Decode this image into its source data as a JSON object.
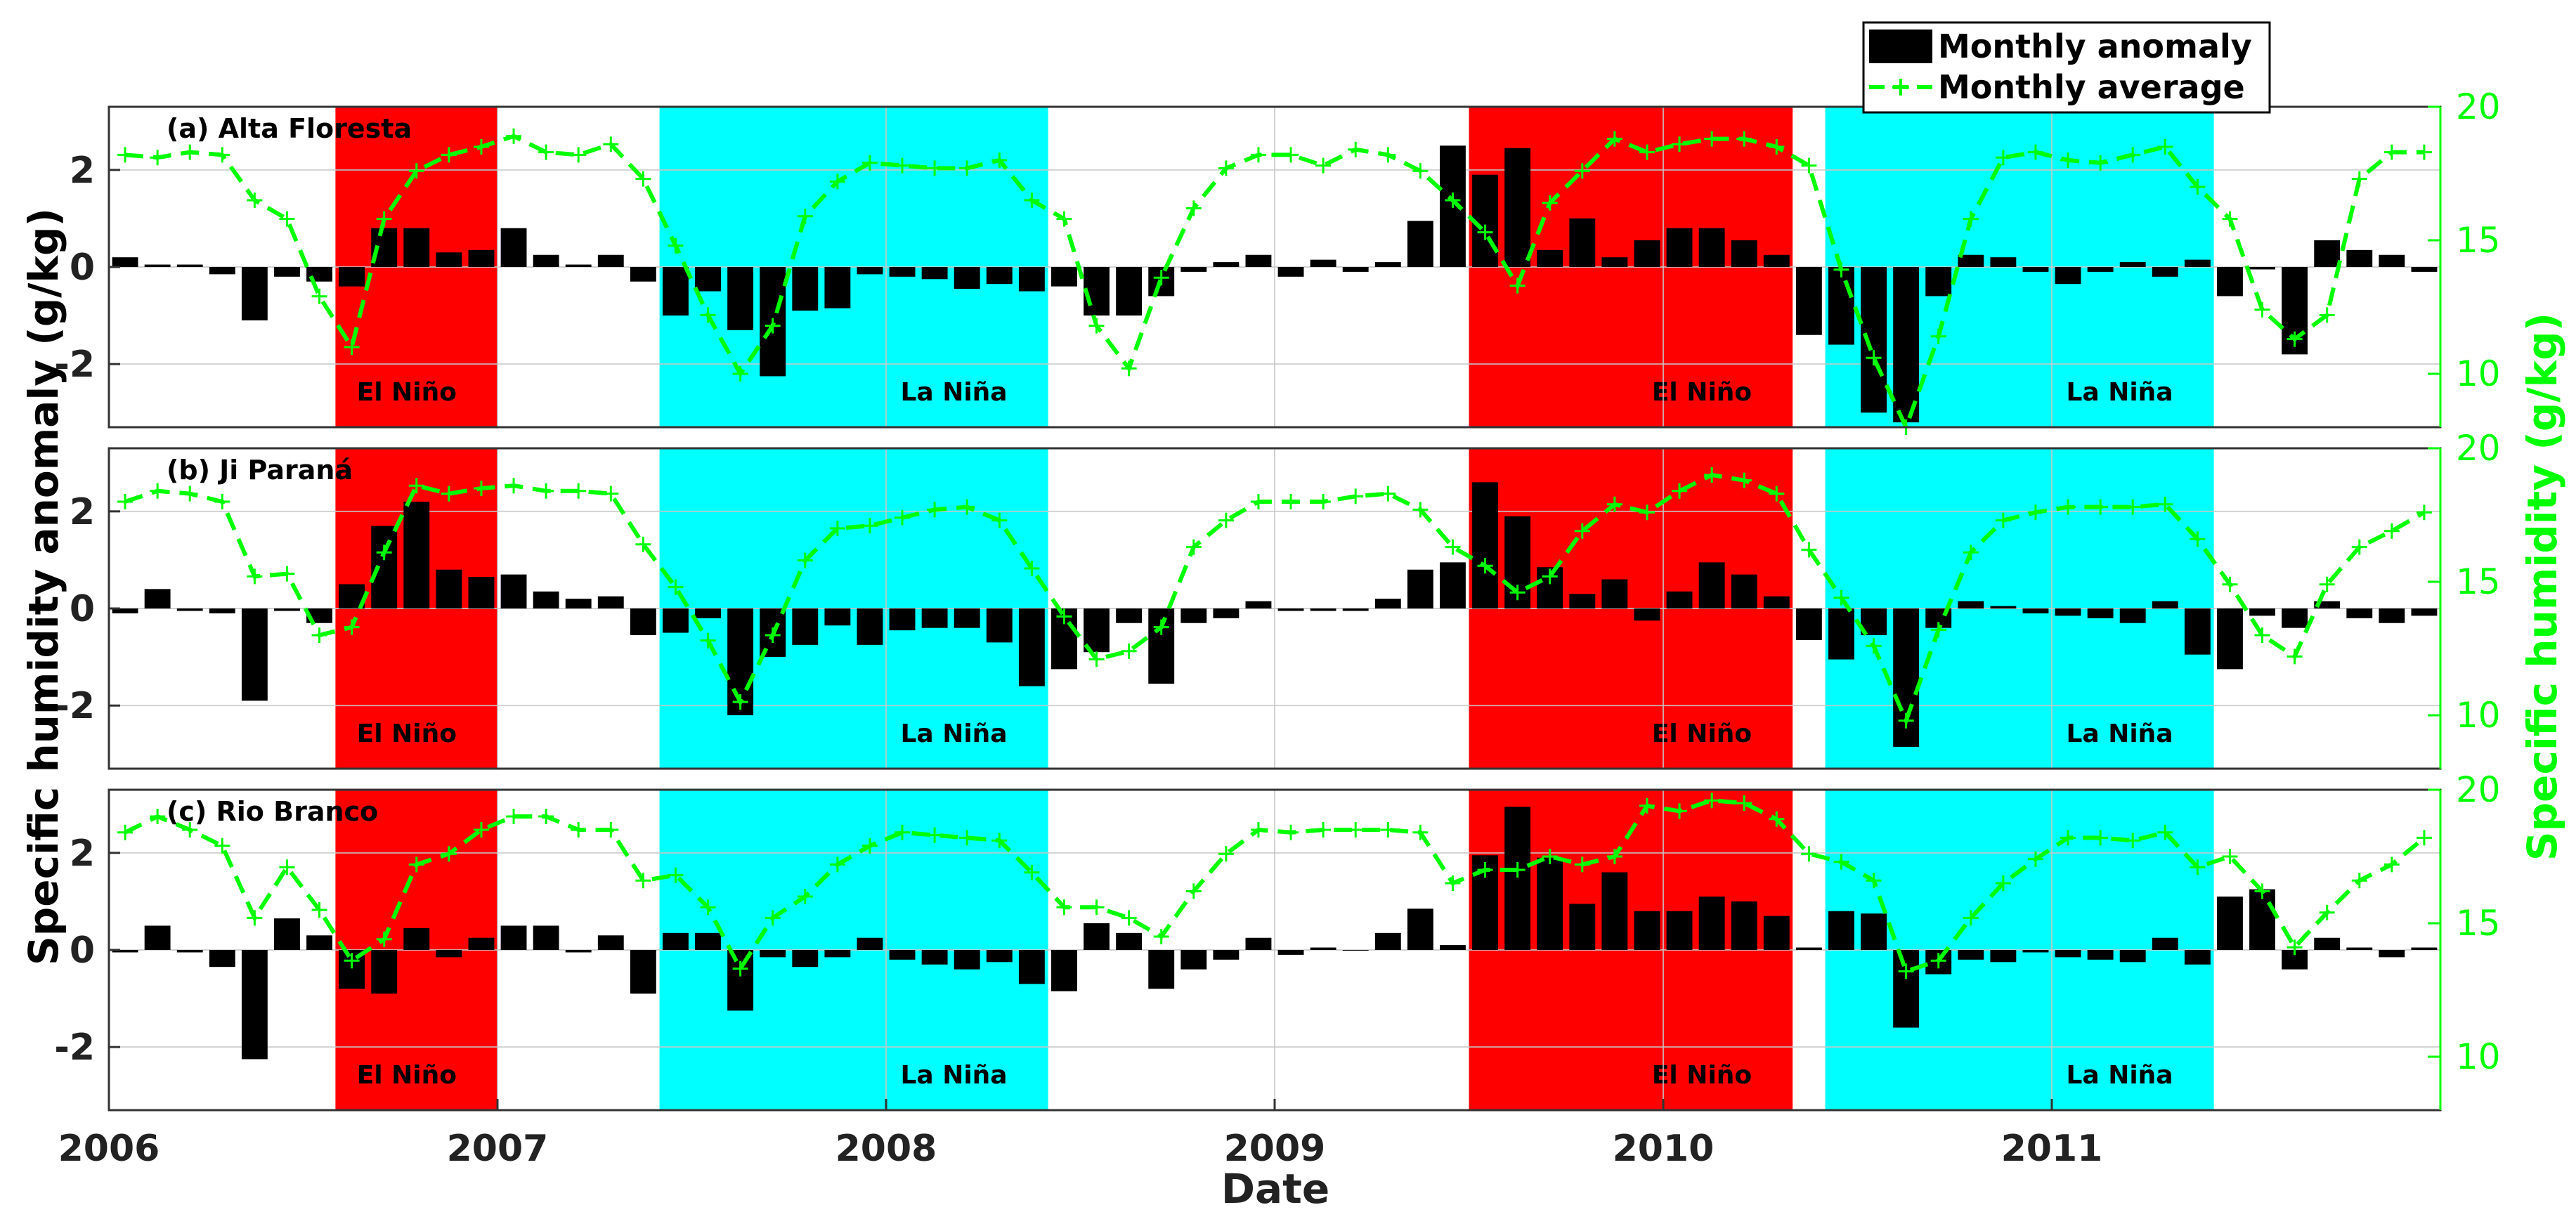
{
  "chart_data": {
    "type": "bar+line",
    "x_axis": {
      "label": "Date",
      "ticks": [
        "2006",
        "2007",
        "2008",
        "2009",
        "2010",
        "2011"
      ],
      "range_years": [
        2006.0,
        2012.0
      ]
    },
    "y_left": {
      "label": "Specific humidity anomaly (g/kg)",
      "ticks": [
        "-2",
        "0",
        "2"
      ],
      "range": [
        -3.3,
        3.3
      ]
    },
    "y_right": {
      "label": "Specific humidity (g/kg)",
      "ticks": [
        "10",
        "15",
        "20"
      ],
      "range": [
        8,
        20
      ]
    },
    "legend": {
      "position": "top-right",
      "entries": [
        {
          "label": "Monthly anomaly",
          "style": "bar"
        },
        {
          "label": "Monthly average",
          "style": "dashed line with + markers"
        }
      ]
    },
    "colors": {
      "bar": "#000000",
      "line": "#00ff00",
      "el_nino": "#ff0000",
      "la_nina": "#00ffff",
      "right_axis": "#00ff00"
    },
    "enso_periods": [
      {
        "label": "El Niño",
        "start": 2006.583,
        "end": 2007.0
      },
      {
        "label": "La Niña",
        "start": 2007.417,
        "end": 2008.417
      },
      {
        "label": "El Niño",
        "start": 2009.5,
        "end": 2010.333
      },
      {
        "label": "La Niña",
        "start": 2010.417,
        "end": 2011.417
      }
    ],
    "panels": [
      {
        "title": "(a) Alta Floresta",
        "anomaly": [
          0.2,
          0.05,
          0.05,
          -0.15,
          -1.1,
          -0.2,
          -0.3,
          -0.4,
          0.8,
          0.8,
          0.3,
          0.35,
          0.8,
          0.25,
          0.05,
          0.25,
          -0.3,
          -1.0,
          -0.5,
          -1.3,
          -2.25,
          -0.9,
          -0.85,
          -0.15,
          -0.2,
          -0.25,
          -0.45,
          -0.35,
          -0.5,
          -0.4,
          -1.0,
          -1.0,
          -0.6,
          -0.1,
          0.1,
          0.25,
          -0.2,
          0.15,
          -0.1,
          0.1,
          0.95,
          2.5,
          1.9,
          2.45,
          0.35,
          1.0,
          0.2,
          0.55,
          0.8,
          0.8,
          0.55,
          0.25,
          -1.4,
          -1.6,
          -3.0,
          -3.2,
          -0.6,
          0.25,
          0.2,
          -0.1,
          -0.35,
          -0.1,
          0.1,
          -0.2,
          0.15,
          -0.6,
          -0.05,
          -1.8,
          0.55,
          0.35,
          0.25,
          -0.1
        ],
        "average": [
          18.2,
          18.1,
          18.3,
          18.2,
          16.5,
          15.8,
          12.9,
          11.0,
          15.8,
          17.6,
          18.2,
          18.5,
          18.9,
          18.3,
          18.2,
          18.6,
          17.3,
          14.8,
          12.2,
          10.0,
          11.8,
          15.9,
          17.2,
          17.9,
          17.8,
          17.7,
          17.7,
          18.0,
          16.5,
          15.8,
          11.8,
          10.2,
          13.6,
          16.2,
          17.7,
          18.2,
          18.2,
          17.8,
          18.4,
          18.2,
          17.6,
          16.5,
          15.3,
          13.3,
          16.4,
          17.6,
          18.8,
          18.3,
          18.6,
          18.8,
          18.8,
          18.5,
          17.8,
          13.9,
          10.6,
          8.0,
          11.4,
          15.8,
          18.1,
          18.3,
          18.0,
          17.9,
          18.2,
          18.5,
          17.0,
          15.8,
          12.4,
          11.3,
          12.2,
          17.3,
          18.3,
          18.3
        ]
      },
      {
        "title": "(b) Ji Paraná",
        "anomaly": [
          -0.1,
          0.4,
          -0.05,
          -0.1,
          -1.9,
          -0.05,
          -0.3,
          0.5,
          1.7,
          2.2,
          0.8,
          0.65,
          0.7,
          0.35,
          0.2,
          0.25,
          -0.55,
          -0.5,
          -0.2,
          -2.2,
          -1.0,
          -0.75,
          -0.35,
          -0.75,
          -0.45,
          -0.4,
          -0.4,
          -0.7,
          -1.6,
          -1.25,
          -0.9,
          -0.3,
          -1.55,
          -0.3,
          -0.2,
          0.15,
          -0.05,
          -0.05,
          -0.05,
          0.2,
          0.8,
          0.95,
          2.6,
          1.9,
          0.85,
          0.3,
          0.6,
          -0.25,
          0.35,
          0.95,
          0.7,
          0.25,
          -0.65,
          -1.05,
          -0.55,
          -2.85,
          -0.4,
          0.15,
          0.05,
          -0.1,
          -0.15,
          -0.2,
          -0.3,
          0.15,
          -0.95,
          -1.25,
          -0.15,
          -0.4,
          0.15,
          -0.2,
          -0.3,
          -0.15
        ],
        "average": [
          18.0,
          18.4,
          18.3,
          18.0,
          15.2,
          15.3,
          13.0,
          13.3,
          16.1,
          18.6,
          18.3,
          18.5,
          18.6,
          18.4,
          18.4,
          18.3,
          16.4,
          14.8,
          12.8,
          10.5,
          13.0,
          15.8,
          17.0,
          17.1,
          17.4,
          17.7,
          17.8,
          17.3,
          15.5,
          13.7,
          12.1,
          12.4,
          13.3,
          16.3,
          17.3,
          18.0,
          18.0,
          18.0,
          18.2,
          18.3,
          17.7,
          16.3,
          15.6,
          14.6,
          15.2,
          16.9,
          17.9,
          17.6,
          18.4,
          19.0,
          18.8,
          18.3,
          16.2,
          14.4,
          12.6,
          9.8,
          13.2,
          16.1,
          17.3,
          17.6,
          17.8,
          17.8,
          17.8,
          17.9,
          16.6,
          14.9,
          13.0,
          12.2,
          14.9,
          16.3,
          16.9,
          17.6
        ]
      },
      {
        "title": "(c) Rio Branco",
        "anomaly": [
          -0.05,
          0.5,
          -0.05,
          -0.35,
          -2.25,
          0.65,
          0.3,
          -0.8,
          -0.9,
          0.45,
          -0.15,
          0.25,
          0.5,
          0.5,
          -0.05,
          0.3,
          -0.9,
          0.35,
          0.35,
          -1.25,
          -0.15,
          -0.35,
          -0.15,
          0.25,
          -0.2,
          -0.3,
          -0.4,
          -0.25,
          -0.7,
          -0.85,
          0.55,
          0.35,
          -0.8,
          -0.4,
          -0.2,
          0.25,
          -0.1,
          0.05,
          0.0,
          0.35,
          0.85,
          0.1,
          1.95,
          2.95,
          1.9,
          0.95,
          1.6,
          0.8,
          0.8,
          1.1,
          1.0,
          0.7,
          0.05,
          0.8,
          0.75,
          -1.6,
          -0.5,
          -0.2,
          -0.25,
          -0.05,
          -0.15,
          -0.2,
          -0.25,
          0.25,
          -0.3,
          1.1,
          1.25,
          -0.4,
          0.25,
          0.05,
          -0.15,
          0.05
        ],
        "average": [
          18.4,
          19.0,
          18.5,
          17.9,
          15.2,
          17.1,
          15.5,
          13.6,
          14.4,
          17.2,
          17.6,
          18.5,
          19.0,
          19.0,
          18.5,
          18.5,
          16.6,
          16.8,
          15.6,
          13.3,
          15.2,
          16.0,
          17.2,
          17.9,
          18.4,
          18.3,
          18.2,
          18.1,
          16.9,
          15.6,
          15.6,
          15.2,
          14.5,
          16.2,
          17.6,
          18.5,
          18.4,
          18.5,
          18.5,
          18.5,
          18.4,
          16.5,
          17.0,
          17.0,
          17.5,
          17.2,
          17.5,
          19.4,
          19.2,
          19.6,
          19.5,
          18.9,
          17.6,
          17.3,
          16.6,
          13.2,
          13.6,
          15.2,
          16.5,
          17.4,
          18.2,
          18.2,
          18.1,
          18.4,
          17.1,
          17.5,
          16.2,
          14.1,
          15.4,
          16.6,
          17.2,
          18.2
        ]
      }
    ]
  }
}
